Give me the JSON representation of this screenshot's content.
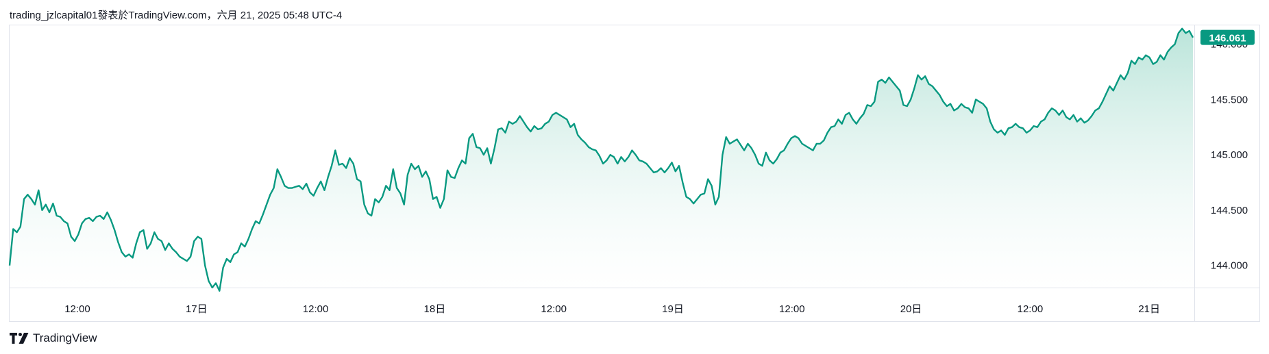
{
  "caption": "trading_jzlcapital01發表於TradingView.com，六月 21, 2025 05:48 UTC-4",
  "footer": {
    "brand": "TradingView",
    "logo_icon": "tradingview-logo-icon"
  },
  "colors": {
    "line": "#089981",
    "fill_top": "#b7e3d8",
    "fill_bottom": "#ffffff",
    "badge": "#089981",
    "border": "#e0e3eb"
  },
  "chart_data": {
    "type": "area",
    "x_ticks": [
      "12:00",
      "17日",
      "12:00",
      "18日",
      "12:00",
      "19日",
      "12:00",
      "20日",
      "12:00",
      "21日"
    ],
    "y_ticks": [
      "144.000",
      "144.500",
      "145.000",
      "145.500",
      "146.000"
    ],
    "ylim": [
      143.8,
      146.17
    ],
    "last_value": "146.061",
    "values": [
      144.0,
      144.33,
      144.3,
      144.35,
      144.6,
      144.64,
      144.6,
      144.55,
      144.68,
      144.5,
      144.55,
      144.48,
      144.56,
      144.45,
      144.44,
      144.4,
      144.38,
      144.26,
      144.22,
      144.28,
      144.38,
      144.42,
      144.43,
      144.4,
      144.44,
      144.45,
      144.42,
      144.48,
      144.41,
      144.32,
      144.21,
      144.12,
      144.08,
      144.1,
      144.07,
      144.2,
      144.3,
      144.32,
      144.15,
      144.2,
      144.3,
      144.24,
      144.22,
      144.14,
      144.2,
      144.15,
      144.12,
      144.08,
      144.06,
      144.04,
      144.08,
      144.22,
      144.26,
      144.24,
      144.0,
      143.86,
      143.8,
      143.84,
      143.77,
      143.98,
      144.06,
      144.03,
      144.1,
      144.12,
      144.2,
      144.17,
      144.24,
      144.33,
      144.4,
      144.38,
      144.46,
      144.55,
      144.64,
      144.7,
      144.87,
      144.8,
      144.72,
      144.7,
      144.7,
      144.71,
      144.72,
      144.69,
      144.74,
      144.66,
      144.63,
      144.7,
      144.76,
      144.68,
      144.8,
      144.9,
      145.04,
      144.91,
      144.92,
      144.88,
      144.97,
      144.92,
      144.78,
      144.76,
      144.55,
      144.47,
      144.45,
      144.6,
      144.57,
      144.62,
      144.72,
      144.68,
      144.87,
      144.7,
      144.65,
      144.55,
      144.82,
      144.92,
      144.87,
      144.9,
      144.8,
      144.85,
      144.78,
      144.6,
      144.62,
      144.52,
      144.6,
      144.86,
      144.8,
      144.79,
      144.88,
      144.95,
      144.92,
      145.15,
      145.19,
      145.07,
      145.06,
      145.0,
      145.06,
      144.92,
      145.06,
      145.23,
      145.24,
      145.2,
      145.3,
      145.28,
      145.3,
      145.35,
      145.3,
      145.25,
      145.21,
      145.26,
      145.23,
      145.24,
      145.28,
      145.3,
      145.36,
      145.38,
      145.36,
      145.34,
      145.32,
      145.25,
      145.28,
      145.18,
      145.14,
      145.11,
      145.07,
      145.05,
      145.04,
      144.99,
      144.92,
      144.95,
      145.0,
      144.98,
      144.92,
      144.98,
      144.94,
      144.98,
      145.04,
      145.0,
      144.95,
      144.94,
      144.92,
      144.88,
      144.84,
      144.85,
      144.88,
      144.84,
      144.88,
      144.93,
      144.85,
      144.9,
      144.75,
      144.62,
      144.6,
      144.56,
      144.6,
      144.64,
      144.65,
      144.78,
      144.72,
      144.55,
      144.62,
      145.0,
      145.16,
      145.1,
      145.12,
      145.14,
      145.09,
      145.04,
      145.1,
      145.06,
      145.0,
      144.92,
      144.9,
      145.02,
      144.95,
      144.92,
      144.96,
      145.02,
      145.04,
      145.1,
      145.15,
      145.17,
      145.15,
      145.1,
      145.08,
      145.06,
      145.04,
      145.1,
      145.1,
      145.13,
      145.2,
      145.25,
      145.26,
      145.32,
      145.28,
      145.36,
      145.38,
      145.32,
      145.28,
      145.33,
      145.37,
      145.45,
      145.44,
      145.48,
      145.66,
      145.68,
      145.65,
      145.7,
      145.66,
      145.62,
      145.58,
      145.45,
      145.44,
      145.5,
      145.6,
      145.72,
      145.68,
      145.71,
      145.64,
      145.62,
      145.58,
      145.54,
      145.48,
      145.44,
      145.46,
      145.4,
      145.42,
      145.46,
      145.43,
      145.42,
      145.38,
      145.5,
      145.48,
      145.46,
      145.42,
      145.3,
      145.23,
      145.2,
      145.22,
      145.18,
      145.24,
      145.25,
      145.28,
      145.25,
      145.24,
      145.2,
      145.22,
      145.26,
      145.25,
      145.3,
      145.32,
      145.38,
      145.42,
      145.4,
      145.36,
      145.4,
      145.34,
      145.32,
      145.36,
      145.3,
      145.33,
      145.29,
      145.31,
      145.35,
      145.4,
      145.42,
      145.48,
      145.55,
      145.62,
      145.58,
      145.65,
      145.72,
      145.68,
      145.74,
      145.85,
      145.82,
      145.88,
      145.86,
      145.9,
      145.88,
      145.82,
      145.84,
      145.9,
      145.86,
      145.93,
      145.97,
      146.0,
      146.1,
      146.14,
      146.1,
      146.12,
      146.06
    ]
  }
}
